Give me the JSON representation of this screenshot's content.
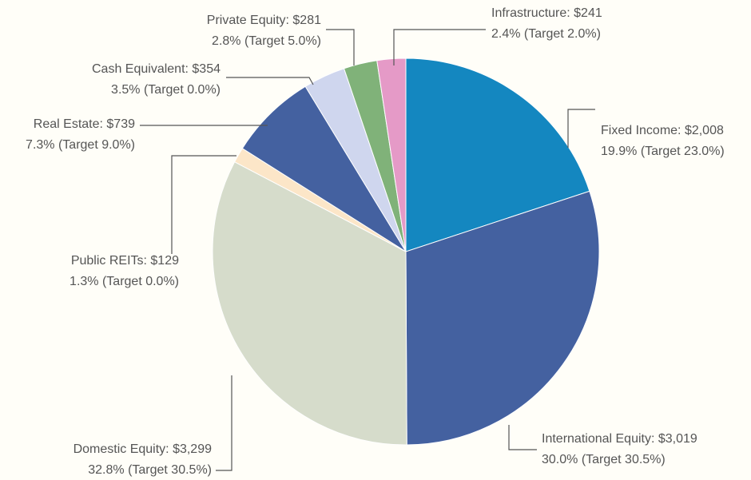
{
  "chart_data": {
    "type": "pie",
    "categories": [
      "Fixed Income",
      "International Equity",
      "Domestic Equity",
      "Public REITs",
      "Real Estate",
      "Cash Equivalent",
      "Private Equity",
      "Infrastructure"
    ],
    "values": [
      2008,
      3019,
      3299,
      129,
      739,
      354,
      281,
      241
    ],
    "value_labels": [
      "$2,008",
      "$3,019",
      "$3,299",
      "$129",
      "$739",
      "$354",
      "$281",
      "$241"
    ],
    "details": [
      "19.9% (Target 23.0%)",
      "30.0% (Target 30.5%)",
      "32.8% (Target 30.5%)",
      "1.3% (Target 0.0%)",
      "7.3% (Target 9.0%)",
      "3.5% (Target 0.0%)",
      "2.8% (Target 5.0%)",
      "2.4% (Target 2.0%)"
    ],
    "colors": [
      "#1487c0",
      "#4461a0",
      "#d6dccb",
      "#fce6c8",
      "#4461a0",
      "#cfd6ee",
      "#80b279",
      "#e59ac7"
    ]
  }
}
